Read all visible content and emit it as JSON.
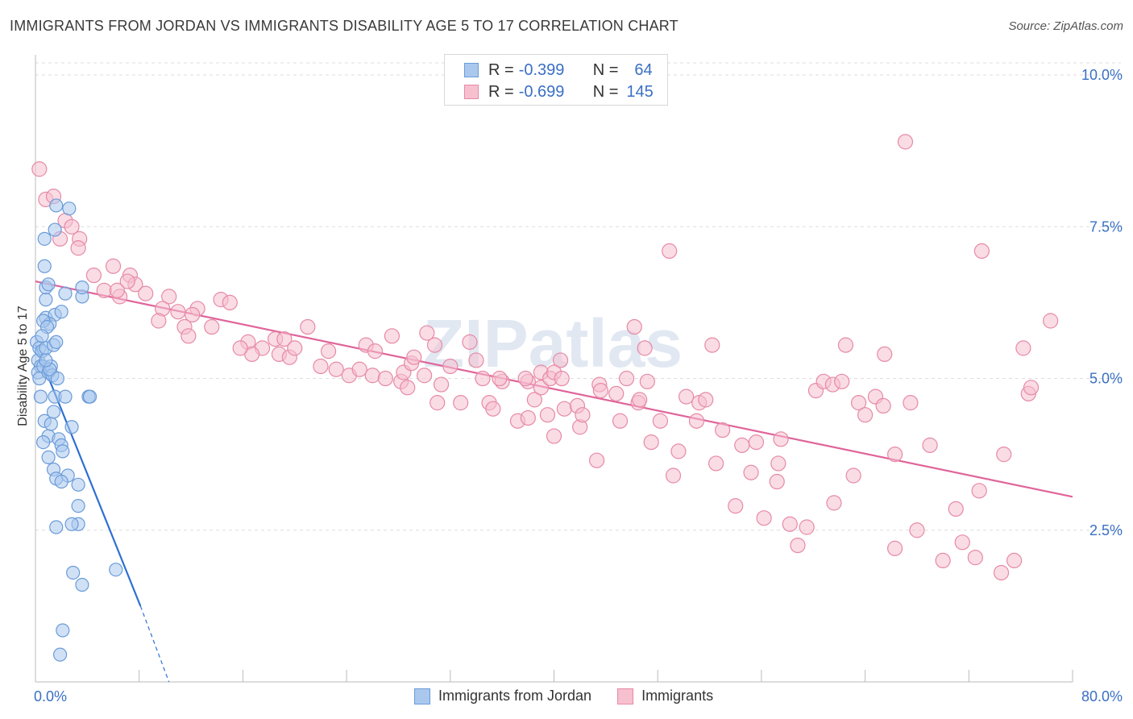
{
  "title": "IMMIGRANTS FROM JORDAN VS IMMIGRANTS DISABILITY AGE 5 TO 17 CORRELATION CHART",
  "source": "Source: ZipAtlas.com",
  "watermark": "ZIPatlas",
  "legend_top": [
    {
      "r_label": "R =",
      "r_value": "-0.399",
      "n_label": "N =",
      "n_value": "64"
    },
    {
      "r_label": "R =",
      "r_value": "-0.699",
      "n_label": "N =",
      "n_value": "145"
    }
  ],
  "legend_bottom": [
    {
      "label": "Immigrants from Jordan"
    },
    {
      "label": "Immigrants"
    }
  ],
  "colors": {
    "jordan_fill": "#aac8ee",
    "jordan_stroke": "#6a9bd8",
    "jordan_line": "#2e6fd3",
    "imm_fill": "#f6c0cf",
    "imm_stroke": "#e68aa6",
    "imm_line": "#e0649a",
    "tick_text": "#3a6fc4",
    "grid": "#dddddd"
  },
  "chart_data": {
    "type": "scatter",
    "title": "IMMIGRANTS FROM JORDAN VS IMMIGRANTS DISABILITY AGE 5 TO 17 CORRELATION CHART",
    "xlabel": "",
    "ylabel": "Disability Age 5 to 17",
    "xlim": [
      0,
      80
    ],
    "ylim": [
      0,
      10.2
    ],
    "x_tick_labels": [
      "0.0%",
      "80.0%"
    ],
    "y_ticks": [
      2.5,
      5.0,
      7.5,
      10.0
    ],
    "y_tick_labels": [
      "2.5%",
      "5.0%",
      "7.5%",
      "10.0%"
    ],
    "grid": true,
    "legend_placement": "top-center and bottom",
    "series": [
      {
        "name": "Immigrants from Jordan",
        "r": -0.399,
        "n": 64,
        "trend": {
          "x": [
            0,
            8.1
          ],
          "y": [
            5.55,
            1.25
          ],
          "dashed_extension_to": [
            10.3,
            0.0
          ]
        },
        "points": [
          [
            0.1,
            5.6
          ],
          [
            0.2,
            5.3
          ],
          [
            0.3,
            5.5
          ],
          [
            0.4,
            5.2
          ],
          [
            0.2,
            5.1
          ],
          [
            0.5,
            5.45
          ],
          [
            0.3,
            5.0
          ],
          [
            0.6,
            5.2
          ],
          [
            0.8,
            5.5
          ],
          [
            1.0,
            5.1
          ],
          [
            1.2,
            5.2
          ],
          [
            0.4,
            4.7
          ],
          [
            0.7,
            4.3
          ],
          [
            1.5,
            4.7
          ],
          [
            1.4,
            4.45
          ],
          [
            1.0,
            4.05
          ],
          [
            1.2,
            4.25
          ],
          [
            2.8,
            4.2
          ],
          [
            2.3,
            4.7
          ],
          [
            4.1,
            4.7
          ],
          [
            4.2,
            4.7
          ],
          [
            1.8,
            4.0
          ],
          [
            2.0,
            3.9
          ],
          [
            2.1,
            3.8
          ],
          [
            0.6,
            3.95
          ],
          [
            1.0,
            3.7
          ],
          [
            1.4,
            3.5
          ],
          [
            1.6,
            3.35
          ],
          [
            2.5,
            3.4
          ],
          [
            2.0,
            3.3
          ],
          [
            3.3,
            3.25
          ],
          [
            3.3,
            2.9
          ],
          [
            3.3,
            2.6
          ],
          [
            2.8,
            2.6
          ],
          [
            1.6,
            2.55
          ],
          [
            2.9,
            1.8
          ],
          [
            3.6,
            1.6
          ],
          [
            6.2,
            1.85
          ],
          [
            2.1,
            0.85
          ],
          [
            1.9,
            0.45
          ],
          [
            0.7,
            7.3
          ],
          [
            1.5,
            7.45
          ],
          [
            1.6,
            7.85
          ],
          [
            2.6,
            7.8
          ],
          [
            0.7,
            6.85
          ],
          [
            0.8,
            6.3
          ],
          [
            0.8,
            6.5
          ],
          [
            1.0,
            6.55
          ],
          [
            2.3,
            6.4
          ],
          [
            3.6,
            6.35
          ],
          [
            3.6,
            6.5
          ],
          [
            0.8,
            6.0
          ],
          [
            1.5,
            6.05
          ],
          [
            1.1,
            5.9
          ],
          [
            2.0,
            6.1
          ],
          [
            0.6,
            5.95
          ],
          [
            1.4,
            5.55
          ],
          [
            1.6,
            5.6
          ],
          [
            0.9,
            5.85
          ],
          [
            0.5,
            5.7
          ],
          [
            1.3,
            5.05
          ],
          [
            1.1,
            5.15
          ],
          [
            0.8,
            5.3
          ],
          [
            1.7,
            5.0
          ]
        ]
      },
      {
        "name": "Immigrants",
        "r": -0.699,
        "n": 145,
        "trend": {
          "x": [
            0,
            80
          ],
          "y": [
            6.6,
            3.05
          ]
        },
        "points": [
          [
            0.3,
            8.45
          ],
          [
            0.8,
            7.95
          ],
          [
            1.4,
            8.0
          ],
          [
            2.3,
            7.6
          ],
          [
            2.8,
            7.5
          ],
          [
            1.9,
            7.3
          ],
          [
            3.4,
            7.3
          ],
          [
            3.3,
            7.15
          ],
          [
            4.5,
            6.7
          ],
          [
            6.0,
            6.85
          ],
          [
            7.3,
            6.7
          ],
          [
            7.7,
            6.55
          ],
          [
            7.1,
            6.6
          ],
          [
            5.3,
            6.45
          ],
          [
            6.5,
            6.35
          ],
          [
            6.3,
            6.45
          ],
          [
            8.5,
            6.4
          ],
          [
            10.3,
            6.35
          ],
          [
            9.8,
            6.15
          ],
          [
            11.0,
            6.1
          ],
          [
            12.5,
            6.15
          ],
          [
            12.1,
            6.05
          ],
          [
            14.3,
            6.3
          ],
          [
            15.0,
            6.25
          ],
          [
            9.5,
            5.95
          ],
          [
            11.5,
            5.85
          ],
          [
            11.8,
            5.7
          ],
          [
            13.6,
            5.85
          ],
          [
            16.4,
            5.6
          ],
          [
            17.5,
            5.5
          ],
          [
            16.7,
            5.4
          ],
          [
            15.8,
            5.5
          ],
          [
            18.5,
            5.65
          ],
          [
            19.2,
            5.65
          ],
          [
            18.8,
            5.4
          ],
          [
            19.6,
            5.35
          ],
          [
            20.0,
            5.5
          ],
          [
            21.0,
            5.85
          ],
          [
            22.0,
            5.2
          ],
          [
            22.6,
            5.45
          ],
          [
            23.2,
            5.15
          ],
          [
            24.2,
            5.05
          ],
          [
            25.0,
            5.15
          ],
          [
            25.5,
            5.55
          ],
          [
            26.2,
            5.45
          ],
          [
            26.0,
            5.05
          ],
          [
            27.0,
            5.0
          ],
          [
            27.5,
            5.7
          ],
          [
            28.2,
            4.95
          ],
          [
            28.4,
            5.1
          ],
          [
            29.0,
            5.25
          ],
          [
            29.2,
            5.35
          ],
          [
            30.2,
            5.75
          ],
          [
            30.8,
            5.55
          ],
          [
            28.7,
            4.85
          ],
          [
            30.0,
            5.05
          ],
          [
            31.0,
            4.6
          ],
          [
            31.3,
            4.9
          ],
          [
            32.0,
            5.2
          ],
          [
            32.8,
            4.6
          ],
          [
            33.5,
            5.6
          ],
          [
            34.0,
            5.3
          ],
          [
            34.5,
            5.0
          ],
          [
            35.0,
            4.6
          ],
          [
            35.3,
            4.5
          ],
          [
            36.0,
            4.95
          ],
          [
            35.8,
            5.0
          ],
          [
            37.2,
            4.3
          ],
          [
            38.0,
            4.95
          ],
          [
            38.5,
            4.65
          ],
          [
            37.8,
            5.0
          ],
          [
            38.0,
            4.35
          ],
          [
            39.0,
            4.85
          ],
          [
            39.0,
            5.1
          ],
          [
            39.5,
            4.4
          ],
          [
            40.5,
            5.3
          ],
          [
            39.7,
            5.0
          ],
          [
            40.0,
            5.1
          ],
          [
            40.0,
            4.05
          ],
          [
            40.6,
            5.0
          ],
          [
            40.8,
            4.5
          ],
          [
            41.8,
            4.55
          ],
          [
            42.0,
            4.2
          ],
          [
            42.2,
            4.4
          ],
          [
            43.3,
            3.65
          ],
          [
            43.5,
            4.9
          ],
          [
            43.6,
            4.8
          ],
          [
            44.8,
            4.75
          ],
          [
            45.1,
            4.3
          ],
          [
            45.6,
            5.0
          ],
          [
            46.2,
            5.85
          ],
          [
            46.5,
            4.6
          ],
          [
            46.6,
            4.65
          ],
          [
            47.2,
            4.95
          ],
          [
            47.0,
            5.5
          ],
          [
            47.5,
            3.95
          ],
          [
            48.2,
            4.3
          ],
          [
            48.9,
            7.1
          ],
          [
            49.2,
            3.4
          ],
          [
            49.6,
            3.8
          ],
          [
            50.2,
            4.7
          ],
          [
            51.2,
            4.6
          ],
          [
            51.0,
            4.3
          ],
          [
            51.7,
            4.65
          ],
          [
            52.2,
            5.55
          ],
          [
            52.5,
            3.6
          ],
          [
            53.0,
            4.15
          ],
          [
            54.0,
            2.9
          ],
          [
            54.5,
            3.9
          ],
          [
            55.2,
            3.45
          ],
          [
            55.6,
            3.95
          ],
          [
            56.2,
            2.7
          ],
          [
            57.3,
            3.6
          ],
          [
            57.5,
            4.0
          ],
          [
            57.2,
            3.3
          ],
          [
            58.2,
            2.6
          ],
          [
            58.8,
            2.25
          ],
          [
            59.5,
            2.55
          ],
          [
            60.2,
            4.8
          ],
          [
            60.8,
            4.95
          ],
          [
            61.5,
            4.9
          ],
          [
            62.2,
            4.95
          ],
          [
            61.6,
            2.95
          ],
          [
            62.5,
            5.55
          ],
          [
            63.1,
            3.4
          ],
          [
            63.5,
            4.6
          ],
          [
            64.0,
            4.4
          ],
          [
            64.8,
            4.7
          ],
          [
            65.4,
            4.55
          ],
          [
            65.5,
            5.4
          ],
          [
            66.3,
            3.75
          ],
          [
            66.3,
            2.2
          ],
          [
            67.1,
            8.9
          ],
          [
            67.5,
            4.6
          ],
          [
            68.0,
            2.5
          ],
          [
            69.0,
            3.9
          ],
          [
            70.0,
            2.0
          ],
          [
            71.0,
            2.85
          ],
          [
            71.5,
            2.3
          ],
          [
            72.5,
            2.05
          ],
          [
            72.8,
            3.15
          ],
          [
            73.0,
            7.1
          ],
          [
            74.5,
            1.8
          ],
          [
            74.7,
            3.75
          ],
          [
            75.5,
            2.0
          ],
          [
            76.2,
            5.5
          ],
          [
            76.6,
            4.75
          ],
          [
            76.8,
            4.85
          ],
          [
            78.3,
            5.95
          ]
        ]
      }
    ]
  }
}
